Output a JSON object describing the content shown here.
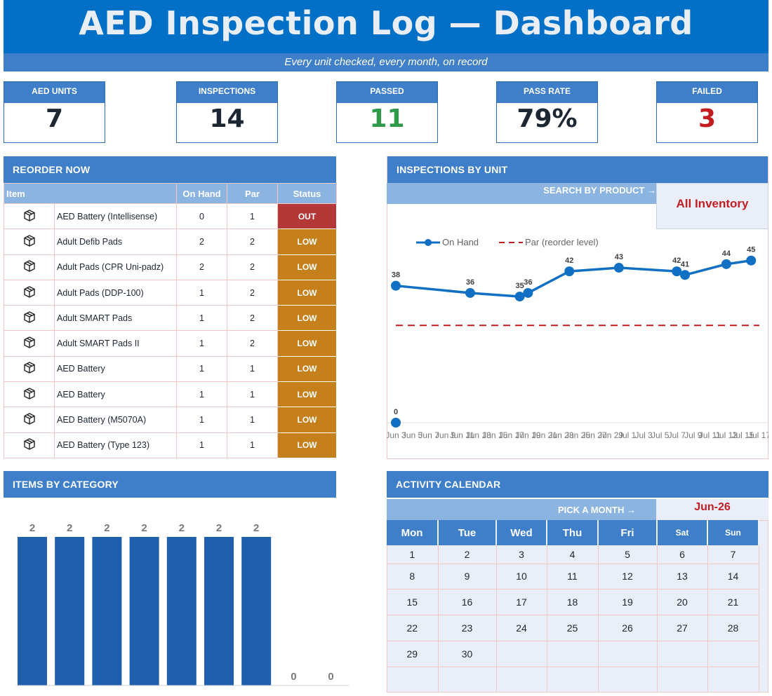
{
  "header": {
    "title": "AED Inspection Log — Dashboard",
    "subtitle": "Every unit checked, every month, on record"
  },
  "kpis": [
    {
      "label": "AED UNITS",
      "value": "7",
      "color": "#1c2733"
    },
    {
      "label": "INSPECTIONS",
      "value": "14",
      "color": "#1c2733"
    },
    {
      "label": "PASSED",
      "value": "11",
      "color": "#2e9a4a"
    },
    {
      "label": "PASS RATE",
      "value": "79%",
      "color": "#1c2733"
    },
    {
      "label": "FAILED",
      "value": "3",
      "color": "#c31d22"
    }
  ],
  "reorder": {
    "title": "REORDER NOW",
    "columns": [
      "Item",
      "On Hand",
      "Par",
      "Status"
    ],
    "rows": [
      {
        "icon": "box-icon",
        "item": "AED Battery (Intellisense)",
        "on_hand": "0",
        "par": "1",
        "status": "OUT"
      },
      {
        "icon": "box-icon",
        "item": "Adult Defib Pads",
        "on_hand": "2",
        "par": "2",
        "status": "LOW"
      },
      {
        "icon": "box-icon",
        "item": "Adult Pads (CPR Uni-padz)",
        "on_hand": "2",
        "par": "2",
        "status": "LOW"
      },
      {
        "icon": "box-icon",
        "item": "Adult Pads (DDP-100)",
        "on_hand": "1",
        "par": "2",
        "status": "LOW"
      },
      {
        "icon": "box-icon",
        "item": "Adult SMART Pads",
        "on_hand": "1",
        "par": "2",
        "status": "LOW"
      },
      {
        "icon": "box-icon",
        "item": "Adult SMART Pads II",
        "on_hand": "1",
        "par": "2",
        "status": "LOW"
      },
      {
        "icon": "box-icon",
        "item": "AED Battery",
        "on_hand": "1",
        "par": "1",
        "status": "LOW"
      },
      {
        "icon": "box-icon",
        "item": "AED Battery",
        "on_hand": "1",
        "par": "1",
        "status": "LOW"
      },
      {
        "icon": "box-icon",
        "item": "AED Battery (M5070A)",
        "on_hand": "1",
        "par": "1",
        "status": "LOW"
      },
      {
        "icon": "box-icon",
        "item": "AED Battery (Type 123)",
        "on_hand": "1",
        "par": "1",
        "status": "LOW"
      }
    ],
    "status_colors": {
      "OUT": "#b43838",
      "LOW": "#c57f1b"
    }
  },
  "byunit": {
    "title": "INSPECTIONS BY UNIT",
    "search_label": "SEARCH BY PRODUCT →",
    "search_value": "All Inventory"
  },
  "bycat": {
    "title": "ITEMS BY CATEGORY"
  },
  "calendar": {
    "title": "ACTIVITY CALENDAR",
    "pick_label": "PICK A MONTH →",
    "month": "Jun-26",
    "days": [
      "Mon",
      "Tue",
      "Wed",
      "Thu",
      "Fri",
      "Sat",
      "Sun"
    ],
    "weeks": [
      [
        "1",
        "2",
        "3",
        "4",
        "5",
        "6",
        "7"
      ],
      [
        "8",
        "9",
        "10",
        "11",
        "12",
        "13",
        "14"
      ],
      [
        "15",
        "16",
        "17",
        "18",
        "19",
        "20",
        "21"
      ],
      [
        "22",
        "23",
        "24",
        "25",
        "26",
        "27",
        "28"
      ],
      [
        "29",
        "30",
        "",
        "",
        "",
        "",
        ""
      ],
      [
        "",
        "",
        "",
        "",
        "",
        "",
        ""
      ]
    ]
  },
  "chart_data": [
    {
      "type": "line",
      "legend": [
        "On Hand",
        "Par (reorder level)"
      ],
      "legend_position": "top-left",
      "x": [
        "Jun 3",
        "Jun 5",
        "Jun 7",
        "Jun 9",
        "Jun 11",
        "Jun 13",
        "Jun 15",
        "Jun 17",
        "Jun 19",
        "Jun 21",
        "Jun 23",
        "Jun 25",
        "Jun 27",
        "Jun 29",
        "Jul 1",
        "Jul 3",
        "Jul 5",
        "Jul 7",
        "Jul 9",
        "Jul 11",
        "Jul 13",
        "Jul 15",
        "Jul 17"
      ],
      "series": [
        {
          "name": "On Hand",
          "color": "#1170c3",
          "points": [
            {
              "x": "Jun 3",
              "y": 0
            },
            {
              "x": "Jun 3",
              "y": 38
            },
            {
              "x": "Jun 12",
              "y": 36
            },
            {
              "x": "Jun 18",
              "y": 35
            },
            {
              "x": "Jun 19",
              "y": 36
            },
            {
              "x": "Jun 24",
              "y": 42
            },
            {
              "x": "Jun 30",
              "y": 43
            },
            {
              "x": "Jul 7",
              "y": 42
            },
            {
              "x": "Jul 8",
              "y": 41
            },
            {
              "x": "Jul 13",
              "y": 44
            },
            {
              "x": "Jul 16",
              "y": 45
            }
          ]
        },
        {
          "name": "Par (reorder level)",
          "color": "#c31d22",
          "style": "dashed",
          "value": 27
        }
      ],
      "ylim": [
        0,
        50
      ],
      "grid": false
    },
    {
      "type": "bar",
      "color": "#1f5fab",
      "values": [
        2,
        2,
        2,
        2,
        2,
        2,
        2,
        0,
        0
      ],
      "ylim": [
        0,
        2.3
      ],
      "grid": false
    }
  ]
}
